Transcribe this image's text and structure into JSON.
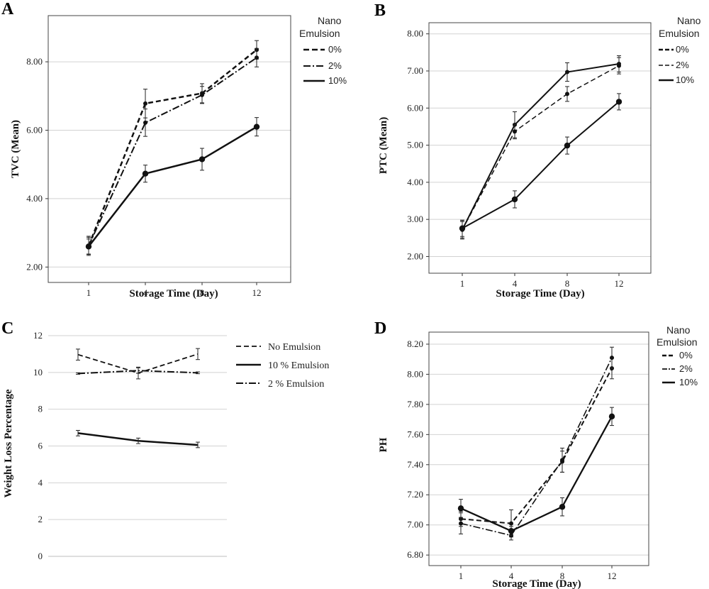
{
  "chart_data": [
    {
      "panel": "A",
      "type": "line",
      "xlabel": "Storage Time (Day)",
      "ylabel": "TVC (Mean)",
      "categories": [
        "1",
        "4",
        "8",
        "12"
      ],
      "yticks": [
        "2.00",
        "4.00",
        "6.00",
        "8.00"
      ],
      "ylim": [
        1.55,
        9.35
      ],
      "grid": "horizontal",
      "legend_title": "Nano Emulsion",
      "legend_title_lines": [
        "Nano",
        "Emulsion"
      ],
      "legend_position": "right",
      "series": [
        {
          "name": "0%",
          "style": "dash",
          "values": [
            2.62,
            6.78,
            7.08,
            8.35
          ],
          "errors": [
            0.28,
            0.42,
            0.28,
            0.27
          ]
        },
        {
          "name": "2%",
          "style": "dashdot",
          "values": [
            2.62,
            6.22,
            7.03,
            8.12
          ],
          "errors": [
            0.25,
            0.4,
            0.25,
            0.27
          ]
        },
        {
          "name": "10%",
          "style": "solid",
          "values": [
            2.6,
            4.73,
            5.15,
            6.1
          ],
          "errors": [
            0.22,
            0.25,
            0.32,
            0.27
          ]
        }
      ]
    },
    {
      "panel": "B",
      "type": "line",
      "xlabel": "Storage Time (Day)",
      "ylabel": "PTC (Mean)",
      "categories": [
        "1",
        "4",
        "8",
        "12"
      ],
      "yticks": [
        "2.00",
        "3.00",
        "4.00",
        "5.00",
        "6.00",
        "7.00",
        "8.00"
      ],
      "ylim": [
        1.55,
        8.3
      ],
      "grid": "horizontal",
      "legend_title": "Nano Emulsion",
      "legend_title_lines": [
        "Nano",
        "Emulsion"
      ],
      "legend_position": "right",
      "series": [
        {
          "name": "0%",
          "style": "solid",
          "values": [
            2.72,
            5.55,
            6.97,
            7.19
          ],
          "errors": [
            0.25,
            0.35,
            0.25,
            0.22
          ]
        },
        {
          "name": "2%",
          "style": "dash",
          "values": [
            2.72,
            5.37,
            6.38,
            7.14
          ],
          "errors": [
            0.22,
            0.2,
            0.2,
            0.22
          ]
        },
        {
          "name": "10%",
          "style": "solid",
          "values": [
            2.76,
            3.54,
            4.99,
            6.17
          ],
          "errors": [
            0.22,
            0.23,
            0.23,
            0.22
          ]
        }
      ]
    },
    {
      "panel": "C",
      "type": "line",
      "xlabel": "",
      "ylabel": "Weight Loss Percentage",
      "categories": [
        "",
        "",
        ""
      ],
      "yticks": [
        "0",
        "2",
        "4",
        "6",
        "8",
        "10",
        "12"
      ],
      "ylim": [
        0,
        12
      ],
      "grid": "horizontal",
      "legend_position": "right",
      "series": [
        {
          "name": "No Emulsion",
          "style": "dash",
          "values": [
            10.97,
            9.97,
            11.0
          ],
          "errors": [
            0.3,
            0.32,
            0.3
          ]
        },
        {
          "name": "10 % Emulsion",
          "style": "solid",
          "values": [
            6.7,
            6.28,
            6.06
          ],
          "errors": [
            0.15,
            0.15,
            0.15
          ]
        },
        {
          "name": "2 % Emulsion",
          "style": "dashdot",
          "values": [
            9.94,
            10.1,
            9.98
          ],
          "errors": [
            0.04,
            0.15,
            0.05
          ]
        }
      ]
    },
    {
      "panel": "D",
      "type": "line",
      "xlabel": "Storage Time (Day)",
      "ylabel": "PH",
      "categories": [
        "1",
        "4",
        "8",
        "12"
      ],
      "yticks": [
        "6.80",
        "7.00",
        "7.20",
        "7.40",
        "7.60",
        "7.80",
        "8.00",
        "8.20"
      ],
      "ylim": [
        6.73,
        8.28
      ],
      "grid": "horizontal",
      "legend_title": "Nano Emulsion",
      "legend_title_lines": [
        "Nano",
        "Emulsion"
      ],
      "legend_position": "right",
      "series": [
        {
          "name": "0%",
          "style": "dash",
          "values": [
            7.04,
            7.01,
            7.42,
            8.04
          ],
          "errors": [
            0.05,
            0.09,
            0.07,
            0.07
          ]
        },
        {
          "name": "2%",
          "style": "dashdot",
          "values": [
            7.01,
            6.93,
            7.43,
            8.11
          ],
          "errors": [
            0.07,
            0.03,
            0.08,
            0.07
          ]
        },
        {
          "name": "10%",
          "style": "solid",
          "values": [
            7.11,
            6.96,
            7.12,
            7.72
          ],
          "errors": [
            0.06,
            0.03,
            0.06,
            0.06
          ]
        }
      ]
    }
  ]
}
